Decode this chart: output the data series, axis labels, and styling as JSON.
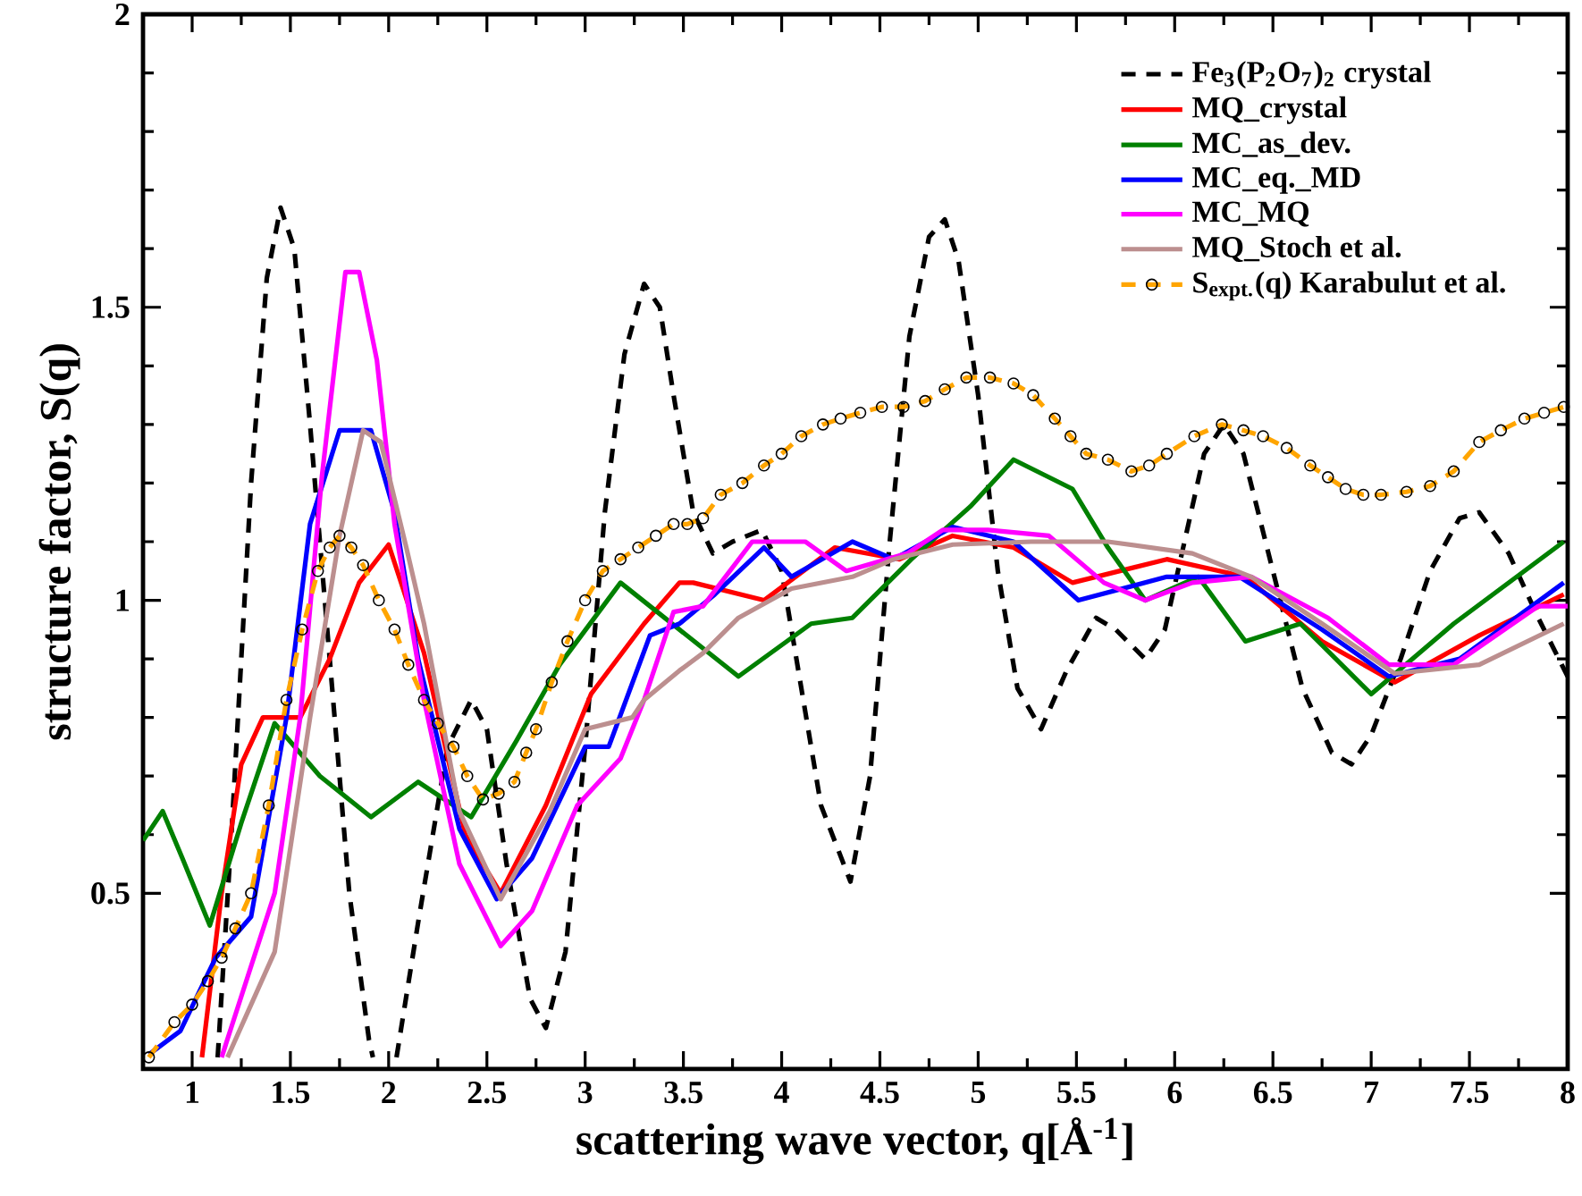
{
  "chart_data": {
    "type": "line",
    "xlabel": "scattering wave vector, q[Å$^{-1}$]",
    "ylabel": "structure factor, S(q)",
    "xlim": [
      0.75,
      8
    ],
    "ylim": [
      0.2,
      2
    ],
    "xticks": [
      1,
      1.5,
      2,
      2.5,
      3,
      3.5,
      4,
      4.5,
      5,
      5.5,
      6,
      6.5,
      7,
      7.5,
      8
    ],
    "yticks": [
      0.5,
      1,
      1.5,
      2
    ],
    "legend": "top right",
    "series": [
      {
        "name": "Fe$_{3}$(P$_{2}$O$_{7}$)$_{2}$ crystal",
        "color": "#000000",
        "line_style": "dashed",
        "marker": "none",
        "x": [
          1.13,
          1.2,
          1.3,
          1.38,
          1.45,
          1.52,
          1.6,
          1.7,
          1.8,
          1.9,
          1.92,
          1.98,
          2.04,
          2.15,
          2.3,
          2.42,
          2.5,
          2.6,
          2.72,
          2.8,
          2.9,
          3.0,
          3.1,
          3.2,
          3.3,
          3.38,
          3.45,
          3.55,
          3.65,
          3.75,
          3.9,
          4.0,
          4.1,
          4.2,
          4.35,
          4.45,
          4.55,
          4.65,
          4.75,
          4.83,
          4.9,
          5.0,
          5.1,
          5.2,
          5.32,
          5.45,
          5.6,
          5.7,
          5.85,
          5.95,
          6.05,
          6.15,
          6.25,
          6.35,
          6.5,
          6.65,
          6.8,
          6.9,
          7.0,
          7.15,
          7.3,
          7.45,
          7.55,
          7.7,
          7.85,
          8.0
        ],
        "values": [
          0.22,
          0.6,
          1.2,
          1.55,
          1.67,
          1.6,
          1.3,
          0.9,
          0.5,
          0.25,
          0.22,
          null,
          0.22,
          0.45,
          0.75,
          0.83,
          0.78,
          0.55,
          0.32,
          0.27,
          0.4,
          0.75,
          1.15,
          1.42,
          1.54,
          1.5,
          1.35,
          1.15,
          1.08,
          1.1,
          1.12,
          1.05,
          0.85,
          0.65,
          0.52,
          0.7,
          1.1,
          1.45,
          1.62,
          1.65,
          1.58,
          1.35,
          1.05,
          0.85,
          0.78,
          0.88,
          0.97,
          0.95,
          0.9,
          0.95,
          1.1,
          1.25,
          1.3,
          1.25,
          1.05,
          0.85,
          0.74,
          0.72,
          0.77,
          0.9,
          1.05,
          1.14,
          1.15,
          1.08,
          0.97,
          0.87
        ]
      },
      {
        "name": "MQ_crystal",
        "color": "#ff0000",
        "line_style": "solid",
        "marker": "none",
        "x": [
          1.05,
          1.15,
          1.25,
          1.36,
          1.55,
          1.7,
          1.85,
          2.0,
          2.18,
          2.39,
          2.57,
          2.8,
          3.03,
          3.3,
          3.48,
          3.55,
          3.91,
          4.27,
          4.6,
          4.87,
          5.18,
          5.48,
          5.96,
          6.36,
          6.75,
          7.12,
          7.55,
          7.98
        ],
        "values": [
          0.22,
          0.5,
          0.72,
          0.8,
          0.8,
          0.9,
          1.03,
          1.095,
          0.91,
          0.6,
          0.5,
          0.65,
          0.84,
          0.96,
          1.03,
          1.03,
          1.0,
          1.09,
          1.07,
          1.11,
          1.09,
          1.03,
          1.07,
          1.04,
          0.93,
          0.86,
          0.94,
          1.01
        ]
      },
      {
        "name": "MC_as_dev.",
        "color": "#008000",
        "line_style": "solid",
        "marker": "none",
        "x": [
          0.75,
          0.85,
          0.95,
          1.09,
          1.25,
          1.42,
          1.65,
          1.91,
          2.15,
          2.42,
          2.65,
          2.87,
          3.18,
          3.48,
          3.78,
          4.15,
          4.36,
          4.66,
          4.96,
          5.18,
          5.48,
          5.66,
          5.85,
          6.12,
          6.36,
          6.64,
          7.0,
          7.42,
          7.98
        ],
        "values": [
          0.59,
          0.64,
          0.56,
          0.445,
          0.62,
          0.79,
          0.7,
          0.63,
          0.69,
          0.63,
          0.76,
          0.89,
          1.03,
          0.95,
          0.87,
          0.96,
          0.97,
          1.07,
          1.16,
          1.24,
          1.19,
          1.09,
          1.0,
          1.04,
          0.93,
          0.96,
          0.84,
          0.96,
          1.1
        ]
      },
      {
        "name": "MC_eq._MD",
        "color": "#0000ff",
        "line_style": "solid",
        "marker": "none",
        "x": [
          0.78,
          0.94,
          1.12,
          1.3,
          1.48,
          1.6,
          1.75,
          1.91,
          2.03,
          2.15,
          2.36,
          2.55,
          2.73,
          3.0,
          3.12,
          3.33,
          3.48,
          3.66,
          3.91,
          4.05,
          4.36,
          4.57,
          4.87,
          5.18,
          5.51,
          5.96,
          6.33,
          6.75,
          7.09,
          7.45,
          7.98
        ],
        "values": [
          0.225,
          0.265,
          0.39,
          0.46,
          0.8,
          1.13,
          1.29,
          1.29,
          1.15,
          0.9,
          0.61,
          0.49,
          0.56,
          0.75,
          0.75,
          0.94,
          0.96,
          1.01,
          1.09,
          1.04,
          1.1,
          1.07,
          1.125,
          1.1,
          1.0,
          1.04,
          1.04,
          0.95,
          0.87,
          0.9,
          1.03
        ]
      },
      {
        "name": "MC_MQ",
        "color": "#ff00ff",
        "line_style": "solid",
        "marker": "none",
        "x": [
          1.15,
          1.42,
          1.55,
          1.66,
          1.78,
          1.85,
          1.94,
          2.03,
          2.18,
          2.36,
          2.57,
          2.73,
          2.96,
          3.18,
          3.3,
          3.45,
          3.6,
          3.85,
          4.12,
          4.33,
          4.64,
          4.82,
          5.05,
          5.36,
          5.64,
          5.85,
          6.09,
          6.39,
          6.78,
          7.09,
          7.42,
          7.85,
          8.0
        ],
        "values": [
          0.22,
          0.5,
          0.8,
          1.21,
          1.56,
          1.56,
          1.41,
          1.13,
          0.83,
          0.55,
          0.41,
          0.47,
          0.65,
          0.73,
          0.83,
          0.98,
          0.99,
          1.1,
          1.1,
          1.05,
          1.08,
          1.12,
          1.12,
          1.11,
          1.03,
          1.0,
          1.03,
          1.04,
          0.97,
          0.89,
          0.89,
          0.99,
          0.99
        ]
      },
      {
        "name": "MQ_Stoch et al.",
        "color": "#bc8f8f",
        "line_style": "solid",
        "marker": "none",
        "x": [
          1.18,
          1.42,
          1.6,
          1.75,
          1.87,
          1.96,
          2.09,
          2.18,
          2.36,
          2.57,
          2.82,
          3.0,
          3.24,
          3.3,
          3.48,
          3.6,
          3.78,
          4.05,
          4.36,
          4.57,
          4.87,
          5.27,
          5.66,
          6.09,
          6.39,
          6.75,
          7.12,
          7.55,
          7.98
        ],
        "values": [
          0.22,
          0.4,
          0.8,
          1.11,
          1.29,
          1.27,
          1.09,
          0.96,
          0.64,
          0.49,
          0.64,
          0.78,
          0.8,
          0.83,
          0.88,
          0.91,
          0.97,
          1.02,
          1.04,
          1.07,
          1.095,
          1.1,
          1.1,
          1.08,
          1.04,
          0.96,
          0.875,
          0.89,
          0.96
        ]
      },
      {
        "name": "S$_{expt.}$(q) Karabulut et al.",
        "color": "#ffa500",
        "line_style": "dashed",
        "marker": "circle",
        "x": [
          0.78,
          0.91,
          1.0,
          1.08,
          1.15,
          1.22,
          1.3,
          1.39,
          1.48,
          1.56,
          1.64,
          1.7,
          1.75,
          1.81,
          1.87,
          1.95,
          2.03,
          2.1,
          2.18,
          2.25,
          2.33,
          2.4,
          2.48,
          2.56,
          2.64,
          2.7,
          2.75,
          2.83,
          2.91,
          3.0,
          3.09,
          3.18,
          3.27,
          3.36,
          3.45,
          3.52,
          3.6,
          3.69,
          3.8,
          3.91,
          4.0,
          4.1,
          4.21,
          4.3,
          4.4,
          4.51,
          4.62,
          4.73,
          4.83,
          4.94,
          5.06,
          5.18,
          5.28,
          5.39,
          5.47,
          5.55,
          5.66,
          5.78,
          5.87,
          5.96,
          6.1,
          6.24,
          6.35,
          6.45,
          6.57,
          6.69,
          6.78,
          6.87,
          6.96,
          7.05,
          7.18,
          7.3,
          7.42,
          7.55,
          7.66,
          7.78,
          7.88,
          7.98
        ],
        "values": [
          0.22,
          0.28,
          0.31,
          0.35,
          0.39,
          0.44,
          0.5,
          0.65,
          0.83,
          0.95,
          1.05,
          1.09,
          1.11,
          1.09,
          1.06,
          1.0,
          0.95,
          0.89,
          0.83,
          0.79,
          0.75,
          0.7,
          0.66,
          0.67,
          0.69,
          0.74,
          0.78,
          0.86,
          0.93,
          1.0,
          1.05,
          1.07,
          1.09,
          1.11,
          1.13,
          1.13,
          1.14,
          1.18,
          1.2,
          1.23,
          1.25,
          1.28,
          1.3,
          1.31,
          1.32,
          1.33,
          1.33,
          1.34,
          1.36,
          1.38,
          1.38,
          1.37,
          1.35,
          1.31,
          1.28,
          1.25,
          1.24,
          1.22,
          1.23,
          1.25,
          1.28,
          1.3,
          1.29,
          1.28,
          1.26,
          1.23,
          1.21,
          1.19,
          1.18,
          1.18,
          1.185,
          1.195,
          1.22,
          1.27,
          1.29,
          1.31,
          1.32,
          1.33
        ]
      }
    ]
  }
}
